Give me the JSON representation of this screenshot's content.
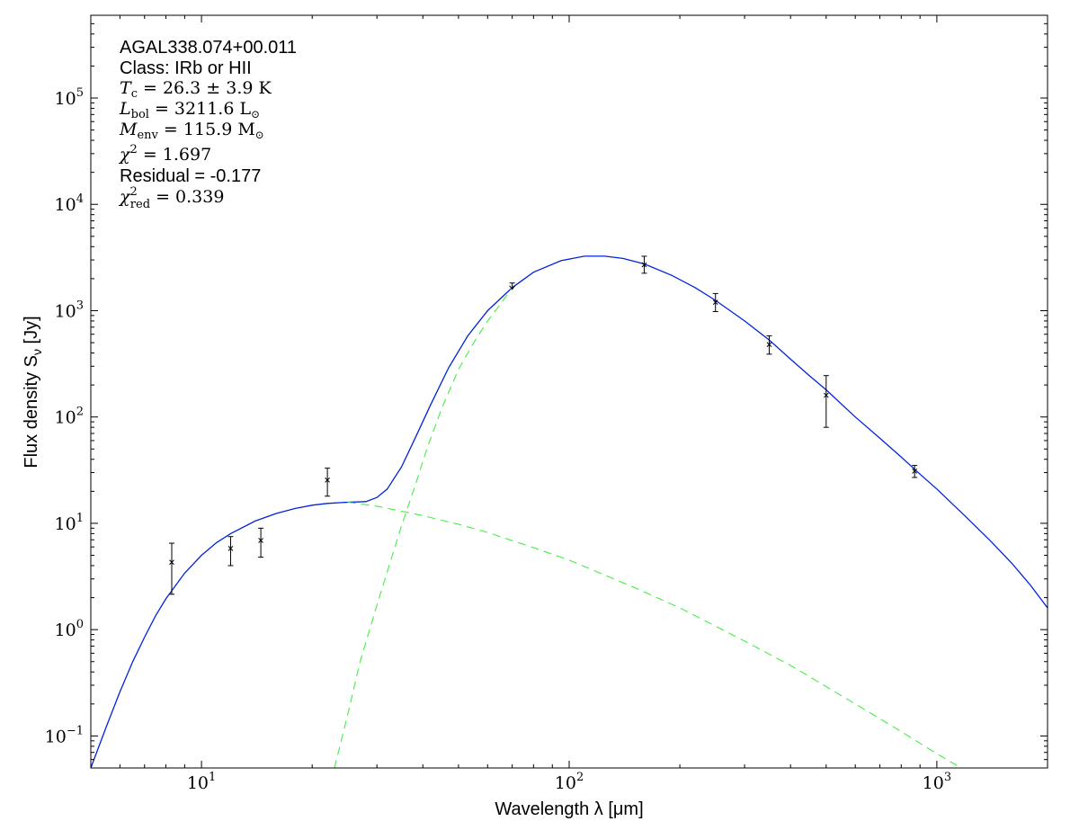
{
  "chart_data": {
    "type": "line",
    "xscale": "log",
    "yscale": "log",
    "xlim": [
      5,
      2000
    ],
    "ylim": [
      0.05,
      600000
    ],
    "xlabel": "Wavelength λ [μm]",
    "ylabel": "Flux density S",
    "ylabel_sub": "ν",
    "ylabel_unit": " [Jy]",
    "x_ticks": [
      {
        "value": 10,
        "base": "10",
        "exp": "1"
      },
      {
        "value": 100,
        "base": "10",
        "exp": "2"
      },
      {
        "value": 1000,
        "base": "10",
        "exp": "3"
      }
    ],
    "y_ticks": [
      {
        "value": 0.1,
        "base": "10",
        "exp": "−1"
      },
      {
        "value": 1,
        "base": "10",
        "exp": "0"
      },
      {
        "value": 10,
        "base": "10",
        "exp": "1"
      },
      {
        "value": 100,
        "base": "10",
        "exp": "2"
      },
      {
        "value": 1000,
        "base": "10",
        "exp": "3"
      },
      {
        "value": 10000,
        "base": "10",
        "exp": "4"
      },
      {
        "value": 100000,
        "base": "10",
        "exp": "5"
      }
    ],
    "series": [
      {
        "style": "solid",
        "color": "#0022dd",
        "points": [
          [
            5.0,
            0.05
          ],
          [
            5.5,
            0.12
          ],
          [
            6.0,
            0.26
          ],
          [
            6.5,
            0.5
          ],
          [
            7.0,
            0.85
          ],
          [
            7.5,
            1.35
          ],
          [
            8.0,
            1.95
          ],
          [
            9.0,
            3.4
          ],
          [
            10.0,
            5.0
          ],
          [
            11.0,
            6.6
          ],
          [
            12.0,
            8.0
          ],
          [
            14.0,
            10.5
          ],
          [
            16.0,
            12.4
          ],
          [
            18.0,
            13.8
          ],
          [
            20.0,
            14.8
          ],
          [
            22.0,
            15.4
          ],
          [
            25.0,
            15.8
          ],
          [
            28.0,
            16.0
          ],
          [
            30.0,
            17.5
          ],
          [
            32.0,
            21
          ],
          [
            35.0,
            34
          ],
          [
            38.0,
            62
          ],
          [
            42.0,
            130
          ],
          [
            47.0,
            290
          ],
          [
            53.0,
            580
          ],
          [
            60.0,
            1000
          ],
          [
            70.0,
            1650
          ],
          [
            80.0,
            2300
          ],
          [
            95.0,
            2950
          ],
          [
            110.0,
            3250
          ],
          [
            125.0,
            3250
          ],
          [
            140.0,
            3100
          ],
          [
            160.0,
            2750
          ],
          [
            190.0,
            2150
          ],
          [
            220.0,
            1650
          ],
          [
            250.0,
            1250
          ],
          [
            300.0,
            800
          ],
          [
            350.0,
            530
          ],
          [
            400.0,
            350
          ],
          [
            450.0,
            245
          ],
          [
            500.0,
            180
          ],
          [
            600.0,
            100
          ],
          [
            700.0,
            63
          ],
          [
            800.0,
            42
          ],
          [
            900.0,
            29
          ],
          [
            1000.0,
            21
          ],
          [
            1200.0,
            11.5
          ],
          [
            1400.0,
            6.8
          ],
          [
            1600.0,
            4.2
          ],
          [
            1800.0,
            2.6
          ],
          [
            2000.0,
            1.6
          ]
        ]
      },
      {
        "style": "dashed",
        "color": "#44ee44",
        "points": [
          [
            25.0,
            15.8
          ],
          [
            30.0,
            14.5
          ],
          [
            35.0,
            13.0
          ],
          [
            40.0,
            11.8
          ],
          [
            50.0,
            9.8
          ],
          [
            60.0,
            8.2
          ],
          [
            80.0,
            5.9
          ],
          [
            100.0,
            4.5
          ],
          [
            150.0,
            2.5
          ],
          [
            200.0,
            1.6
          ],
          [
            300.0,
            0.78
          ],
          [
            400.0,
            0.46
          ],
          [
            600.0,
            0.2
          ],
          [
            800.0,
            0.11
          ],
          [
            1000.0,
            0.068
          ],
          [
            1200.0,
            0.047
          ]
        ]
      },
      {
        "style": "dashed",
        "color": "#44ee44",
        "points": [
          [
            23.0,
            0.05
          ],
          [
            25.0,
            0.16
          ],
          [
            27.0,
            0.5
          ],
          [
            30.0,
            1.7
          ],
          [
            32.0,
            3.5
          ],
          [
            35.0,
            9.5
          ],
          [
            38.0,
            22
          ],
          [
            41.0,
            50
          ],
          [
            45.0,
            120
          ],
          [
            50.0,
            280
          ],
          [
            55.0,
            500
          ],
          [
            60.0,
            800
          ],
          [
            65.0,
            1150
          ],
          [
            70.0,
            1650
          ]
        ]
      }
    ],
    "data_points": [
      {
        "x": 8.3,
        "y": 4.3,
        "err_low": 2.15,
        "err_high": 6.5
      },
      {
        "x": 12.0,
        "y": 5.8,
        "err_low": 4.0,
        "err_high": 7.5
      },
      {
        "x": 14.5,
        "y": 6.9,
        "err_low": 4.8,
        "err_high": 9.0
      },
      {
        "x": 22.0,
        "y": 25.5,
        "err_low": 18.0,
        "err_high": 33.0
      },
      {
        "x": 70.0,
        "y": 1620,
        "err_low": 1600,
        "err_high": 1820,
        "upper_limit": true
      },
      {
        "x": 160.0,
        "y": 2700,
        "err_low": 2250,
        "err_high": 3250
      },
      {
        "x": 250.0,
        "y": 1200,
        "err_low": 980,
        "err_high": 1450
      },
      {
        "x": 350.0,
        "y": 480,
        "err_low": 390,
        "err_high": 580
      },
      {
        "x": 500.0,
        "y": 160,
        "err_low": 80,
        "err_high": 245
      },
      {
        "x": 870.0,
        "y": 31,
        "err_low": 27,
        "err_high": 35
      }
    ]
  },
  "annotation": {
    "source_name": "AGAL338.074+00.011",
    "class_text": "Class: IRb or HII",
    "tc": {
      "sym": "T",
      "sub": "c",
      "rest": " = 26.3 ± 3.9 K"
    },
    "lbol": {
      "sym": "L",
      "sub": "bol",
      "rest": " = 3211.6 L",
      "unit_sub": "⊙"
    },
    "menv": {
      "sym": "M",
      "sub": "env",
      "rest": " = 115.9 M",
      "unit_sub": "⊙"
    },
    "chi2": {
      "sym": "χ",
      "sup": "2",
      "rest": " = 1.697"
    },
    "residual_text": "Residual = -0.177",
    "chi2red": {
      "sym": "χ",
      "sup": "2",
      "sub": "red",
      "rest": " = 0.339"
    }
  }
}
